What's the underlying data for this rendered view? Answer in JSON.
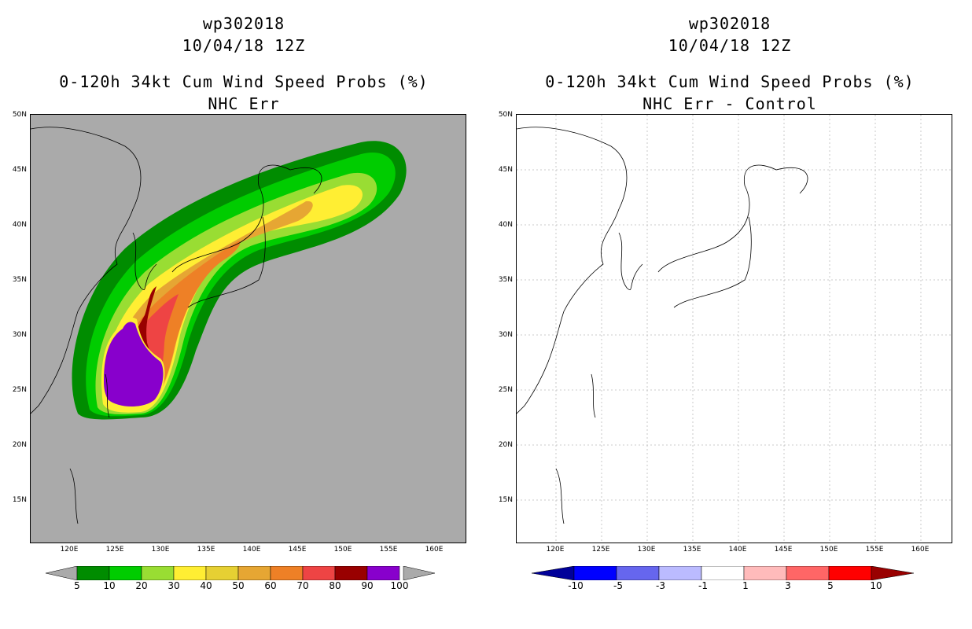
{
  "left": {
    "title1": "wp302018",
    "title2": "10/04/18 12Z",
    "title3": "0-120h 34kt Cum Wind Speed Probs (%)",
    "title4": "NHC Err",
    "background": "#aaaaaa",
    "colorbar": {
      "colors": [
        "#008c00",
        "#00cc00",
        "#99dd33",
        "#ffee33",
        "#e6d033",
        "#e6a633",
        "#ee8026",
        "#ee4444",
        "#990000",
        "#8800cc"
      ],
      "labels": [
        "5",
        "10",
        "20",
        "30",
        "40",
        "50",
        "60",
        "70",
        "80",
        "90",
        "100"
      ]
    }
  },
  "right": {
    "title1": "wp302018",
    "title2": "10/04/18 12Z",
    "title3": "0-120h 34kt Cum Wind Speed Probs (%)",
    "title4": "NHC Err - Control",
    "background": "#ffffff",
    "colorbar": {
      "colors": [
        "#000099",
        "#0000ff",
        "#6666ee",
        "#bbbbff",
        "#ffffff",
        "#ffbbbb",
        "#ff6666",
        "#ff0000",
        "#990000"
      ],
      "labels": [
        "-10",
        "-5",
        "-3",
        "-1",
        "1",
        "3",
        "5",
        "10"
      ]
    }
  },
  "axes": {
    "lat_labels": [
      "50N",
      "45N",
      "40N",
      "35N",
      "30N",
      "25N",
      "20N",
      "15N"
    ],
    "lon_labels": [
      "120E",
      "125E",
      "130E",
      "135E",
      "140E",
      "145E",
      "150E",
      "155E",
      "160E"
    ]
  }
}
